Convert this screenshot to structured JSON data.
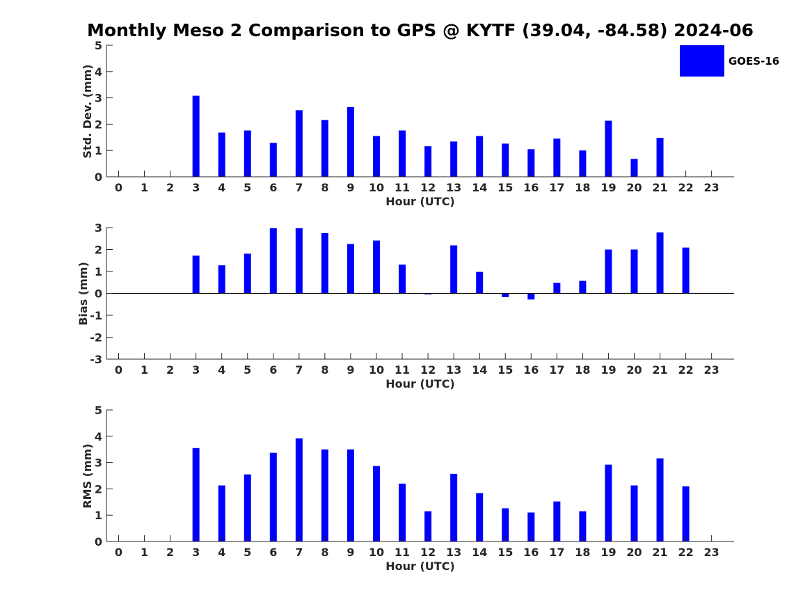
{
  "title": "Monthly Meso 2 Comparison to GPS @ KYTF (39.04, -84.58) 2024-06",
  "colors": {
    "bar": "#0000ff",
    "axis": "#262626"
  },
  "legend": {
    "label": "GOES-16",
    "placement": "top-right"
  },
  "chart_data": [
    {
      "type": "bar",
      "name": "std-dev",
      "ylabel": "Std. Dev. (mm)",
      "xlabel": "Hour (UTC)",
      "categories": [
        "0",
        "1",
        "2",
        "3",
        "4",
        "5",
        "6",
        "7",
        "8",
        "9",
        "10",
        "11",
        "12",
        "13",
        "14",
        "15",
        "16",
        "17",
        "18",
        "19",
        "20",
        "21",
        "22",
        "23"
      ],
      "series": [
        {
          "name": "GOES-16",
          "values": [
            null,
            null,
            null,
            3.08,
            1.68,
            1.76,
            1.29,
            2.53,
            2.16,
            2.65,
            1.55,
            1.76,
            1.16,
            1.34,
            1.55,
            1.26,
            1.05,
            1.45,
            1.0,
            2.13,
            0.68,
            1.48,
            null,
            null
          ]
        }
      ],
      "ylim": [
        0,
        5
      ],
      "yticks": [
        0,
        1,
        2,
        3,
        4,
        5
      ],
      "grid": false
    },
    {
      "type": "bar",
      "name": "bias",
      "ylabel": "Bias (mm)",
      "xlabel": "Hour (UTC)",
      "categories": [
        "0",
        "1",
        "2",
        "3",
        "4",
        "5",
        "6",
        "7",
        "8",
        "9",
        "10",
        "11",
        "12",
        "13",
        "14",
        "15",
        "16",
        "17",
        "18",
        "19",
        "20",
        "21",
        "22",
        "23"
      ],
      "series": [
        {
          "name": "GOES-16",
          "values": [
            null,
            null,
            null,
            1.72,
            1.28,
            1.81,
            2.97,
            2.97,
            2.75,
            2.25,
            2.41,
            1.31,
            -0.05,
            2.19,
            0.98,
            -0.17,
            -0.28,
            0.48,
            0.57,
            2.0,
            2.0,
            2.78,
            2.09,
            null
          ]
        }
      ],
      "ylim": [
        -3,
        3
      ],
      "yticks": [
        -3,
        -2,
        -1,
        0,
        1,
        2,
        3
      ],
      "grid": false
    },
    {
      "type": "bar",
      "name": "rms",
      "ylabel": "RMS (mm)",
      "xlabel": "Hour (UTC)",
      "categories": [
        "0",
        "1",
        "2",
        "3",
        "4",
        "5",
        "6",
        "7",
        "8",
        "9",
        "10",
        "11",
        "12",
        "13",
        "14",
        "15",
        "16",
        "17",
        "18",
        "19",
        "20",
        "21",
        "22",
        "23"
      ],
      "series": [
        {
          "name": "GOES-16",
          "values": [
            null,
            null,
            null,
            3.55,
            2.13,
            2.55,
            3.37,
            3.92,
            3.5,
            3.5,
            2.87,
            2.2,
            1.15,
            2.57,
            1.84,
            1.26,
            1.1,
            1.52,
            1.15,
            2.92,
            2.13,
            3.16,
            2.1,
            null
          ]
        }
      ],
      "ylim": [
        0,
        5
      ],
      "yticks": [
        0,
        1,
        2,
        3,
        4,
        5
      ],
      "grid": false
    }
  ]
}
